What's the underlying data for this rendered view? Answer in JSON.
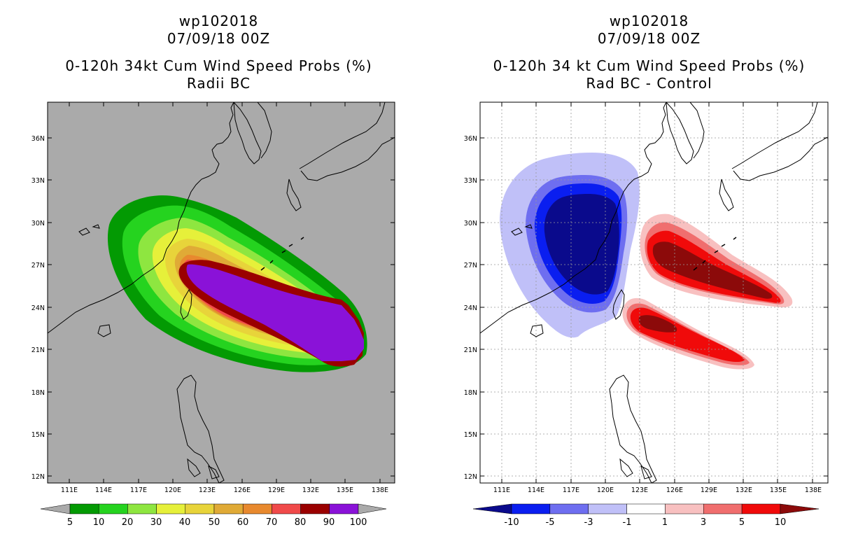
{
  "left_panel": {
    "title_line1": "wp102018",
    "title_line2": "07/09/18 00Z",
    "title_line3": "0-120h 34kt Cum Wind Speed Probs (%)",
    "title_line4": "Radii BC",
    "lat_labels": [
      "12N",
      "15N",
      "18N",
      "21N",
      "24N",
      "27N",
      "30N",
      "33N",
      "36N"
    ],
    "lon_labels": [
      "111E",
      "114E",
      "117E",
      "120E",
      "123E",
      "126E",
      "129E",
      "132E",
      "135E",
      "138E"
    ],
    "colorbar_labels": [
      "5",
      "10",
      "20",
      "30",
      "40",
      "50",
      "60",
      "70",
      "80",
      "90",
      "100"
    ],
    "colorbar_colors": [
      "#039a03",
      "#25d31f",
      "#8ee640",
      "#e6f03a",
      "#e8d43a",
      "#e0aa36",
      "#e8892e",
      "#f04a4a",
      "#9a0000",
      "#8a12d8"
    ]
  },
  "right_panel": {
    "title_line1": "wp102018",
    "title_line2": "07/09/18 00Z",
    "title_line3": "0-120h 34 kt Cum Wind Speed Probs (%)",
    "title_line4": "Rad BC - Control",
    "lat_labels": [
      "12N",
      "15N",
      "18N",
      "21N",
      "24N",
      "27N",
      "30N",
      "33N",
      "36N"
    ],
    "lon_labels": [
      "111E",
      "114E",
      "117E",
      "120E",
      "123E",
      "126E",
      "129E",
      "132E",
      "135E",
      "138E"
    ],
    "colorbar_labels": [
      "-10",
      "-5",
      "-3",
      "-1",
      "1",
      "3",
      "5",
      "10"
    ],
    "colorbar_colors": [
      "#0a0a8c",
      "#0a1ef0",
      "#6e6ef0",
      "#c0c0f8",
      "#ffffff",
      "#f8c0c0",
      "#f06e6e",
      "#f00a0a",
      "#8c0a0a"
    ]
  }
}
